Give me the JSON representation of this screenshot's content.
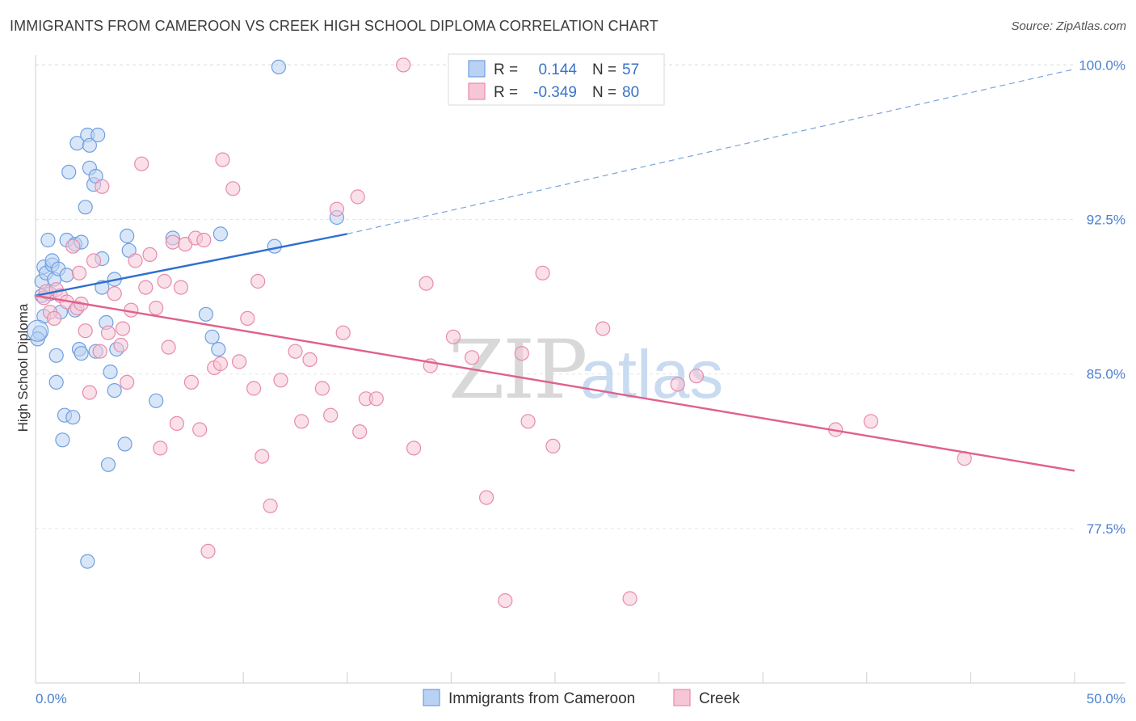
{
  "title": "IMMIGRANTS FROM CAMEROON VS CREEK HIGH SCHOOL DIPLOMA CORRELATION CHART",
  "source": "Source: ZipAtlas.com",
  "watermark": {
    "zip": "ZIP",
    "atlas": "atlas"
  },
  "chart_data": {
    "type": "scatter",
    "ylabel": "High School Diploma",
    "xlim": [
      0,
      50
    ],
    "ylim": [
      70,
      100.8
    ],
    "x_tick_labels": [
      "0.0%",
      "50.0%"
    ],
    "y_ticks": [
      77.5,
      85.0,
      92.5,
      100.0
    ],
    "y_tick_labels": [
      "77.5%",
      "85.0%",
      "92.5%",
      "100.0%"
    ],
    "grid": true,
    "legend_position": "top-center",
    "series": [
      {
        "name": "Immigrants from Cameroon",
        "color": "#6f9fe0",
        "fill": "#b9d1f3",
        "r_label": "R =",
        "r_value": "0.144",
        "n_label": "N =",
        "n_value": "57",
        "trend": {
          "x0": 0,
          "y0": 88.8,
          "x1": 15,
          "y1": 91.8,
          "dash_to_x": 50,
          "dash_to_y": 99.8,
          "color": "#2f6fcf"
        },
        "points": [
          [
            0.2,
            87.0
          ],
          [
            0.3,
            88.8
          ],
          [
            0.3,
            89.5
          ],
          [
            0.4,
            90.2
          ],
          [
            0.4,
            87.8
          ],
          [
            0.5,
            89.9
          ],
          [
            0.6,
            91.5
          ],
          [
            0.7,
            88.9
          ],
          [
            0.8,
            90.3
          ],
          [
            0.8,
            90.5
          ],
          [
            0.9,
            89.6
          ],
          [
            1.0,
            84.6
          ],
          [
            1.1,
            90.1
          ],
          [
            1.2,
            88.0
          ],
          [
            1.3,
            81.8
          ],
          [
            1.4,
            83.0
          ],
          [
            1.5,
            89.8
          ],
          [
            1.5,
            91.5
          ],
          [
            1.6,
            94.8
          ],
          [
            1.8,
            82.9
          ],
          [
            1.9,
            88.1
          ],
          [
            1.9,
            91.3
          ],
          [
            2.0,
            96.2
          ],
          [
            2.1,
            86.2
          ],
          [
            2.2,
            91.4
          ],
          [
            2.2,
            86.0
          ],
          [
            2.4,
            93.1
          ],
          [
            2.5,
            96.6
          ],
          [
            2.5,
            75.9
          ],
          [
            2.6,
            95.0
          ],
          [
            2.6,
            96.1
          ],
          [
            2.8,
            94.2
          ],
          [
            2.9,
            94.6
          ],
          [
            3.0,
            96.6
          ],
          [
            3.2,
            89.2
          ],
          [
            3.2,
            90.6
          ],
          [
            3.4,
            87.5
          ],
          [
            3.5,
            80.6
          ],
          [
            3.6,
            85.1
          ],
          [
            3.8,
            84.2
          ],
          [
            3.8,
            89.6
          ],
          [
            3.9,
            86.2
          ],
          [
            4.3,
            81.6
          ],
          [
            4.4,
            91.7
          ],
          [
            4.5,
            91.0
          ],
          [
            5.8,
            83.7
          ],
          [
            6.6,
            91.6
          ],
          [
            8.2,
            87.9
          ],
          [
            8.5,
            86.8
          ],
          [
            8.8,
            86.2
          ],
          [
            8.9,
            91.8
          ],
          [
            11.5,
            91.2
          ],
          [
            11.7,
            99.9
          ],
          [
            14.5,
            92.6
          ],
          [
            0.1,
            86.7
          ],
          [
            1.0,
            85.9
          ],
          [
            2.9,
            86.1
          ]
        ]
      },
      {
        "name": "Creek",
        "color": "#e88aab",
        "fill": "#f6c6d6",
        "r_label": "R =",
        "r_value": "-0.349",
        "n_label": "N =",
        "n_value": "80",
        "trend": {
          "x0": 0,
          "y0": 88.8,
          "x1": 50,
          "y1": 80.3,
          "color": "#e0608d"
        },
        "points": [
          [
            0.4,
            88.7
          ],
          [
            0.5,
            89.0
          ],
          [
            0.7,
            88.0
          ],
          [
            0.9,
            87.7
          ],
          [
            1.0,
            89.1
          ],
          [
            1.2,
            88.8
          ],
          [
            1.5,
            88.5
          ],
          [
            1.8,
            91.2
          ],
          [
            2.0,
            88.2
          ],
          [
            2.1,
            89.9
          ],
          [
            2.2,
            88.4
          ],
          [
            2.4,
            87.1
          ],
          [
            2.6,
            84.1
          ],
          [
            2.8,
            90.5
          ],
          [
            3.1,
            86.1
          ],
          [
            3.2,
            94.1
          ],
          [
            3.5,
            87.0
          ],
          [
            3.8,
            88.9
          ],
          [
            4.1,
            86.4
          ],
          [
            4.2,
            87.2
          ],
          [
            4.4,
            84.6
          ],
          [
            4.6,
            88.1
          ],
          [
            4.8,
            90.5
          ],
          [
            5.1,
            95.2
          ],
          [
            5.3,
            89.2
          ],
          [
            5.5,
            90.8
          ],
          [
            5.8,
            88.2
          ],
          [
            6.0,
            81.4
          ],
          [
            6.2,
            89.5
          ],
          [
            6.4,
            86.3
          ],
          [
            6.6,
            91.4
          ],
          [
            6.8,
            82.6
          ],
          [
            7.0,
            89.2
          ],
          [
            7.2,
            91.3
          ],
          [
            7.5,
            84.6
          ],
          [
            7.7,
            91.6
          ],
          [
            7.9,
            82.3
          ],
          [
            8.1,
            91.5
          ],
          [
            8.3,
            76.4
          ],
          [
            8.6,
            85.3
          ],
          [
            8.9,
            85.5
          ],
          [
            9.0,
            95.4
          ],
          [
            9.5,
            94.0
          ],
          [
            9.8,
            85.6
          ],
          [
            10.2,
            87.7
          ],
          [
            10.5,
            84.3
          ],
          [
            10.7,
            89.5
          ],
          [
            10.9,
            81.0
          ],
          [
            11.3,
            78.6
          ],
          [
            11.8,
            84.7
          ],
          [
            12.5,
            86.1
          ],
          [
            12.8,
            82.7
          ],
          [
            13.2,
            85.7
          ],
          [
            13.8,
            84.3
          ],
          [
            14.2,
            83.0
          ],
          [
            14.5,
            93.0
          ],
          [
            14.8,
            87.0
          ],
          [
            15.5,
            93.6
          ],
          [
            15.6,
            82.2
          ],
          [
            15.9,
            83.8
          ],
          [
            16.4,
            83.8
          ],
          [
            17.7,
            100.0
          ],
          [
            18.2,
            81.4
          ],
          [
            18.8,
            89.4
          ],
          [
            19.0,
            85.4
          ],
          [
            20.1,
            86.8
          ],
          [
            21.0,
            85.8
          ],
          [
            21.7,
            79.0
          ],
          [
            22.6,
            74.0
          ],
          [
            23.4,
            86.0
          ],
          [
            23.7,
            82.7
          ],
          [
            24.4,
            89.9
          ],
          [
            24.9,
            81.5
          ],
          [
            27.3,
            87.2
          ],
          [
            28.6,
            74.1
          ],
          [
            30.9,
            84.5
          ],
          [
            31.8,
            84.9
          ],
          [
            38.5,
            82.3
          ],
          [
            40.2,
            82.7
          ],
          [
            44.7,
            80.9
          ]
        ]
      }
    ]
  }
}
